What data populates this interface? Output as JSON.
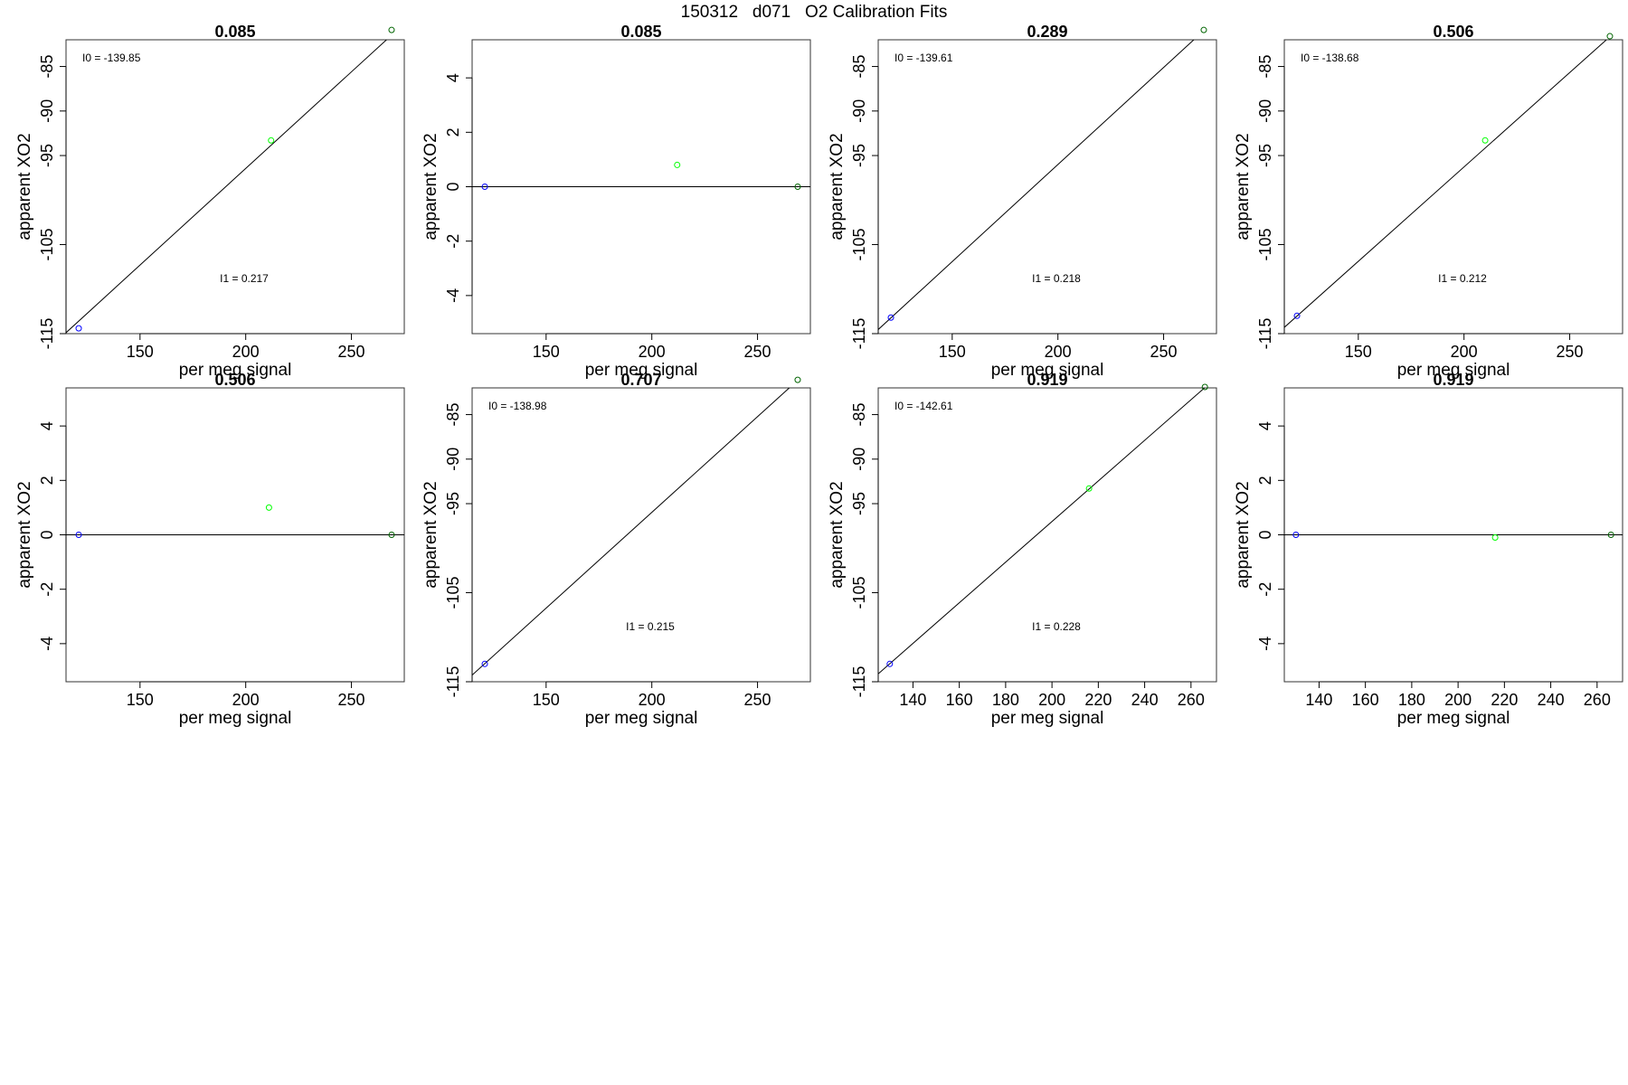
{
  "figure": {
    "title": "150312   d071   O2 Calibration Fits"
  },
  "colors": {
    "low_std": "#0000ff",
    "mid_std": "#00ff00",
    "high_std": "#006400",
    "fit_line": "#000000",
    "frame": "#333333"
  },
  "chart_data": [
    {
      "type": "scatter",
      "title": "0.085",
      "xlabel": "per meg signal",
      "ylabel": "apparent XO2",
      "xlim": [
        115,
        275
      ],
      "ylim": [
        -115,
        -82
      ],
      "xticks": [
        "150",
        "200",
        "250"
      ],
      "yticks": [
        "-85",
        "-90",
        "-95",
        "-105",
        "-115"
      ],
      "points": [
        {
          "x": 121,
          "y": -114.4,
          "color": "blue"
        },
        {
          "x": 212,
          "y": -93.3,
          "color": "green"
        },
        {
          "x": 269,
          "y": -80.9,
          "color": "darkgreen"
        }
      ],
      "fit_line": {
        "intercept": -139.85,
        "slope": 0.217
      },
      "annotations": [
        "I0 =  -139.85",
        "I1 =  0.217"
      ]
    },
    {
      "type": "scatter",
      "title": "0.085",
      "xlabel": "per meg signal",
      "ylabel": "apparent XO2",
      "xlim": [
        115,
        275
      ],
      "ylim": [
        -5.4,
        5.4
      ],
      "xticks": [
        "150",
        "200",
        "250"
      ],
      "yticks": [
        "4",
        "2",
        "0",
        "-2",
        "-4"
      ],
      "points": [
        {
          "x": 121,
          "y": 0.0,
          "color": "blue"
        },
        {
          "x": 212,
          "y": 0.8,
          "color": "green"
        },
        {
          "x": 269,
          "y": 0.0,
          "color": "darkgreen"
        }
      ],
      "fit_line": {
        "intercept": 0,
        "slope": 0
      },
      "annotations": []
    },
    {
      "type": "scatter",
      "title": "0.289",
      "xlabel": "per meg signal",
      "ylabel": "apparent XO2",
      "xlim": [
        115,
        275
      ],
      "ylim": [
        -115,
        -82
      ],
      "xticks": [
        "150",
        "200",
        "250"
      ],
      "yticks": [
        "-85",
        "-90",
        "-95",
        "-105",
        "-115"
      ],
      "points": [
        {
          "x": 121,
          "y": -113.2,
          "color": "blue"
        },
        {
          "x": 269,
          "y": -80.9,
          "color": "darkgreen"
        }
      ],
      "fit_line": {
        "intercept": -139.61,
        "slope": 0.218
      },
      "annotations": [
        "I0 =  -139.61",
        "I1 =  0.218"
      ]
    },
    {
      "type": "scatter",
      "title": "0.506",
      "xlabel": "per meg signal",
      "ylabel": "apparent XO2",
      "xlim": [
        115,
        275
      ],
      "ylim": [
        -115,
        -82
      ],
      "xticks": [
        "150",
        "200",
        "250"
      ],
      "yticks": [
        "-85",
        "-90",
        "-95",
        "-105",
        "-115"
      ],
      "points": [
        {
          "x": 121,
          "y": -113.0,
          "color": "blue"
        },
        {
          "x": 210,
          "y": -93.3,
          "color": "green"
        },
        {
          "x": 269,
          "y": -81.6,
          "color": "darkgreen"
        }
      ],
      "fit_line": {
        "intercept": -138.68,
        "slope": 0.212
      },
      "annotations": [
        "I0 =  -138.68",
        "I1 =  0.212"
      ]
    },
    {
      "type": "scatter",
      "title": "0.506",
      "xlabel": "per meg signal",
      "ylabel": "apparent XO2",
      "xlim": [
        115,
        275
      ],
      "ylim": [
        -5.4,
        5.4
      ],
      "xticks": [
        "150",
        "200",
        "250"
      ],
      "yticks": [
        "4",
        "2",
        "0",
        "-2",
        "-4"
      ],
      "points": [
        {
          "x": 121,
          "y": 0.0,
          "color": "blue"
        },
        {
          "x": 211,
          "y": 1.0,
          "color": "green"
        },
        {
          "x": 269,
          "y": 0.0,
          "color": "darkgreen"
        }
      ],
      "fit_line": {
        "intercept": 0,
        "slope": 0
      },
      "annotations": []
    },
    {
      "type": "scatter",
      "title": "0.707",
      "xlabel": "per meg signal",
      "ylabel": "apparent XO2",
      "xlim": [
        115,
        275
      ],
      "ylim": [
        -115,
        -82
      ],
      "xticks": [
        "150",
        "200",
        "250"
      ],
      "yticks": [
        "-85",
        "-90",
        "-95",
        "-105",
        "-115"
      ],
      "points": [
        {
          "x": 121,
          "y": -113.0,
          "color": "blue"
        },
        {
          "x": 269,
          "y": -81.1,
          "color": "darkgreen"
        }
      ],
      "fit_line": {
        "intercept": -138.98,
        "slope": 0.215
      },
      "annotations": [
        "I0 =  -138.98",
        "I1 =  0.215"
      ]
    },
    {
      "type": "scatter",
      "title": "0.919",
      "xlabel": "per meg signal",
      "ylabel": "apparent XO2",
      "xlim": [
        125,
        271
      ],
      "ylim": [
        -115,
        -82
      ],
      "xticks": [
        "140",
        "160",
        "180",
        "200",
        "220",
        "240",
        "260"
      ],
      "yticks": [
        "-85",
        "-90",
        "-95",
        "-105",
        "-115"
      ],
      "points": [
        {
          "x": 130,
          "y": -113.0,
          "color": "blue"
        },
        {
          "x": 216,
          "y": -93.3,
          "color": "green"
        },
        {
          "x": 266,
          "y": -81.9,
          "color": "darkgreen"
        }
      ],
      "fit_line": {
        "intercept": -142.61,
        "slope": 0.228
      },
      "annotations": [
        "I0 =  -142.61",
        "I1 =  0.228"
      ]
    },
    {
      "type": "scatter",
      "title": "0.919",
      "xlabel": "per meg signal",
      "ylabel": "apparent XO2",
      "xlim": [
        125,
        271
      ],
      "ylim": [
        -5.4,
        5.4
      ],
      "xticks": [
        "140",
        "160",
        "180",
        "200",
        "220",
        "240",
        "260"
      ],
      "yticks": [
        "4",
        "2",
        "0",
        "-2",
        "-4"
      ],
      "points": [
        {
          "x": 130,
          "y": 0.0,
          "color": "blue"
        },
        {
          "x": 216,
          "y": -0.1,
          "color": "green"
        },
        {
          "x": 266,
          "y": 0.0,
          "color": "darkgreen"
        }
      ],
      "fit_line": {
        "intercept": 0,
        "slope": 0
      },
      "annotations": []
    }
  ]
}
